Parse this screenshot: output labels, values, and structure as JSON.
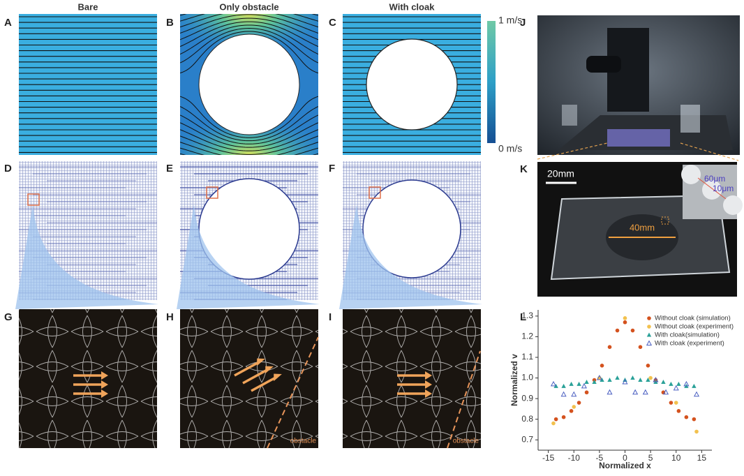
{
  "columns": [
    "Bare",
    "Only obstacle",
    "With cloak"
  ],
  "panel_labels": [
    "A",
    "B",
    "C",
    "D",
    "E",
    "F",
    "G",
    "H",
    "I",
    "J",
    "K",
    "L"
  ],
  "colorbar": {
    "max": "1 m/s",
    "min": "0 m/s"
  },
  "panel_k": {
    "scale": "20mm",
    "diameter": "40mm",
    "inset_large": "60μm",
    "inset_small": "10μm"
  },
  "obstacle_labels": [
    "obstacle",
    "obstacle"
  ],
  "chart_data": {
    "type": "scatter",
    "x_label": "Normalized x",
    "y_label": "Normalized v",
    "xlim": [
      -17,
      17
    ],
    "xticks": [
      -15,
      -10,
      -5,
      0,
      5,
      10,
      15
    ],
    "ylim": [
      0.65,
      1.33
    ],
    "yticks": [
      0.7,
      0.8,
      0.9,
      {
        "value": 1,
        "label": "1.0"
      },
      1.1,
      1.2,
      1.3
    ],
    "series": [
      {
        "name": "Without cloak (simulation)",
        "color": "#d4521e",
        "marker": "circle",
        "x": [
          -13.5,
          -12,
          -10.5,
          -9,
          -7.5,
          -6,
          -4.5,
          -3,
          -1.5,
          0,
          1.5,
          3,
          4.5,
          6,
          7.5,
          9,
          10.5,
          12,
          13.5
        ],
        "values": [
          0.8,
          0.81,
          0.84,
          0.88,
          0.93,
          0.99,
          1.06,
          1.15,
          1.23,
          1.27,
          1.23,
          1.15,
          1.06,
          0.99,
          0.93,
          0.88,
          0.84,
          0.81,
          0.8
        ]
      },
      {
        "name": "Without cloak (experiment)",
        "color": "#f2c14e",
        "marker": "circle",
        "x": [
          -14,
          -10,
          -5,
          0,
          5,
          10,
          14
        ],
        "values": [
          0.78,
          0.86,
          1.0,
          1.29,
          1.0,
          0.88,
          0.74
        ]
      },
      {
        "name": "With cloak(simulation)",
        "color": "#2aa198",
        "marker": "triangle",
        "x": [
          -13.5,
          -12,
          -10.5,
          -9,
          -7.5,
          -6,
          -4.5,
          -3,
          -1.5,
          0,
          1.5,
          3,
          4.5,
          6,
          7.5,
          9,
          10.5,
          12,
          13.5
        ],
        "values": [
          0.96,
          0.96,
          0.97,
          0.97,
          0.98,
          0.98,
          0.99,
          0.99,
          1.0,
          0.99,
          1.0,
          0.99,
          0.99,
          0.98,
          0.98,
          0.97,
          0.97,
          0.96,
          0.96
        ]
      },
      {
        "name": "With cloak (experiment)",
        "color": "#4a5fc1",
        "marker": "triangle-open",
        "x": [
          -14,
          -12,
          -10,
          -8,
          -5,
          -3,
          0,
          2,
          4,
          6,
          8,
          10,
          12,
          14
        ],
        "values": [
          0.97,
          0.92,
          0.92,
          0.96,
          1.0,
          0.93,
          0.98,
          0.93,
          0.93,
          0.99,
          0.93,
          0.95,
          0.97,
          0.92
        ]
      }
    ]
  }
}
